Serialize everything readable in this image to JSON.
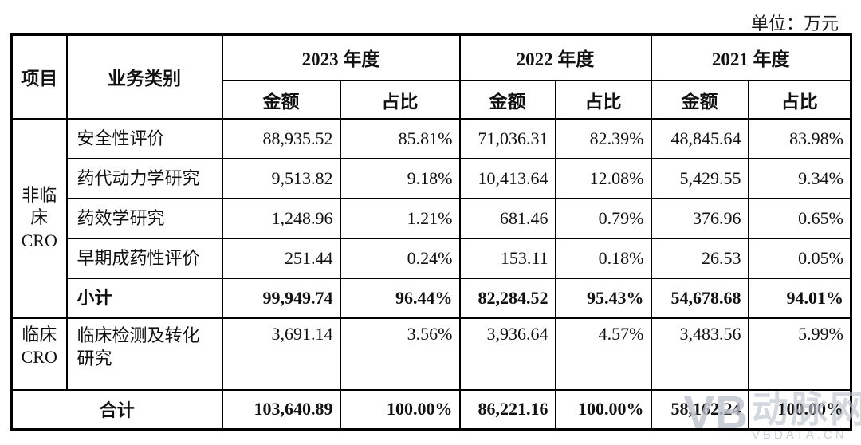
{
  "unit_label": "单位：万元",
  "table": {
    "header": {
      "item": "项目",
      "category": "业务类别",
      "year_groups": [
        {
          "year": "2023 年度",
          "amount": "金额",
          "ratio": "占比"
        },
        {
          "year": "2022 年度",
          "amount": "金额",
          "ratio": "占比"
        },
        {
          "year": "2021 年度",
          "amount": "金额",
          "ratio": "占比"
        }
      ]
    },
    "groups": [
      {
        "item": "非临床CRO",
        "rows": [
          {
            "category": "安全性评价",
            "bold": false,
            "tall": false,
            "values": [
              "88,935.52",
              "85.81%",
              "71,036.31",
              "82.39%",
              "48,845.64",
              "83.98%"
            ]
          },
          {
            "category": "药代动力学研究",
            "bold": false,
            "tall": false,
            "values": [
              "9,513.82",
              "9.18%",
              "10,413.64",
              "12.08%",
              "5,429.55",
              "9.34%"
            ]
          },
          {
            "category": "药效学研究",
            "bold": false,
            "tall": false,
            "values": [
              "1,248.96",
              "1.21%",
              "681.46",
              "0.79%",
              "376.96",
              "0.65%"
            ]
          },
          {
            "category": "早期成药性评价",
            "bold": false,
            "tall": false,
            "values": [
              "251.44",
              "0.24%",
              "153.11",
              "0.18%",
              "26.53",
              "0.05%"
            ]
          },
          {
            "category": "小计",
            "bold": true,
            "tall": false,
            "values": [
              "99,949.74",
              "96.44%",
              "82,284.52",
              "95.43%",
              "54,678.68",
              "94.01%"
            ]
          }
        ]
      },
      {
        "item": "临床CRO",
        "rows": [
          {
            "category": "临床检测及转化研究",
            "bold": false,
            "tall": true,
            "values": [
              "3,691.14",
              "3.56%",
              "3,936.64",
              "4.57%",
              "3,483.56",
              "5.99%"
            ]
          }
        ]
      }
    ],
    "total_row": {
      "label": "合计",
      "values": [
        "103,640.89",
        "100.00%",
        "86,221.16",
        "100.00%",
        "58,162.24",
        "100.00%"
      ]
    }
  },
  "watermark": {
    "logo_text": "VB",
    "brand": "动脉网",
    "domain": "VBDATA.CN"
  }
}
